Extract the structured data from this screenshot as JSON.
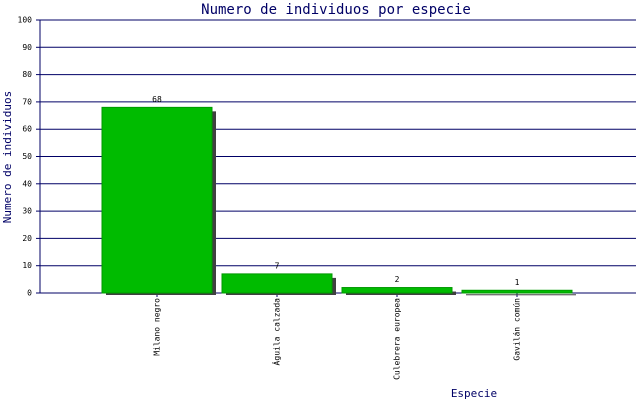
{
  "chart_data": {
    "type": "bar",
    "title": "Numero de individuos por especie",
    "x_label": "Especie",
    "y_label": "Numero de individuos",
    "categories": [
      "Milano negro",
      "Águila calzada",
      "Culebrera europea",
      "Gavilán común"
    ],
    "values": [
      68,
      7,
      2,
      1
    ],
    "color": "#00bb00",
    "ylim": [
      0,
      100
    ],
    "yticks": [
      0,
      10,
      20,
      30,
      40,
      50,
      60,
      70,
      80,
      90,
      100
    ],
    "grid": true
  }
}
